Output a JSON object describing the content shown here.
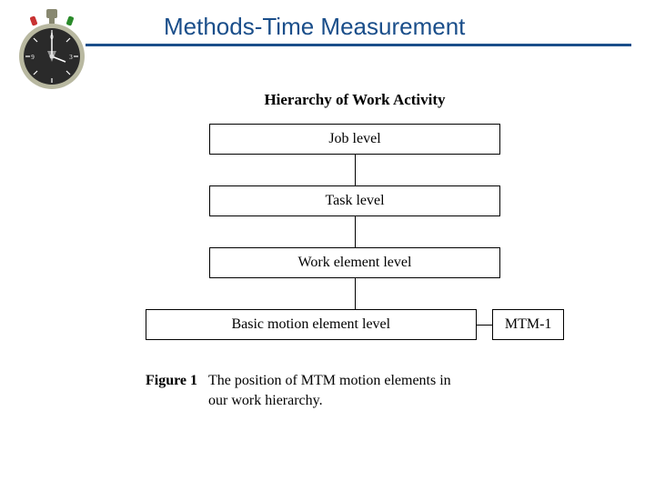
{
  "header": {
    "title": "Methods-Time Measurement",
    "title_color": "#1a4e8a",
    "title_fontsize": 26,
    "line_color": "#1a4e8a"
  },
  "stopwatch": {
    "rim_color": "#b8b8a0",
    "face_color": "#2a2a2a",
    "button_left_color": "#c83232",
    "button_right_color": "#2a8a2a",
    "crown_color": "#888870",
    "tick_color": "#ffffff"
  },
  "diagram": {
    "hierarchy_title": "Hierarchy of Work Activity",
    "hierarchy_title_fontsize": 17,
    "box_fontsize": 16,
    "boxes": {
      "job": "Job level",
      "task": "Task level",
      "work_element": "Work element level",
      "basic_motion": "Basic motion element level",
      "mtm1": "MTM-1"
    },
    "connector_height": 34,
    "border_color": "#000000"
  },
  "caption": {
    "label": "Figure 1",
    "text": "The position of MTM motion elements in our work hierarchy.",
    "fontsize": 16
  }
}
